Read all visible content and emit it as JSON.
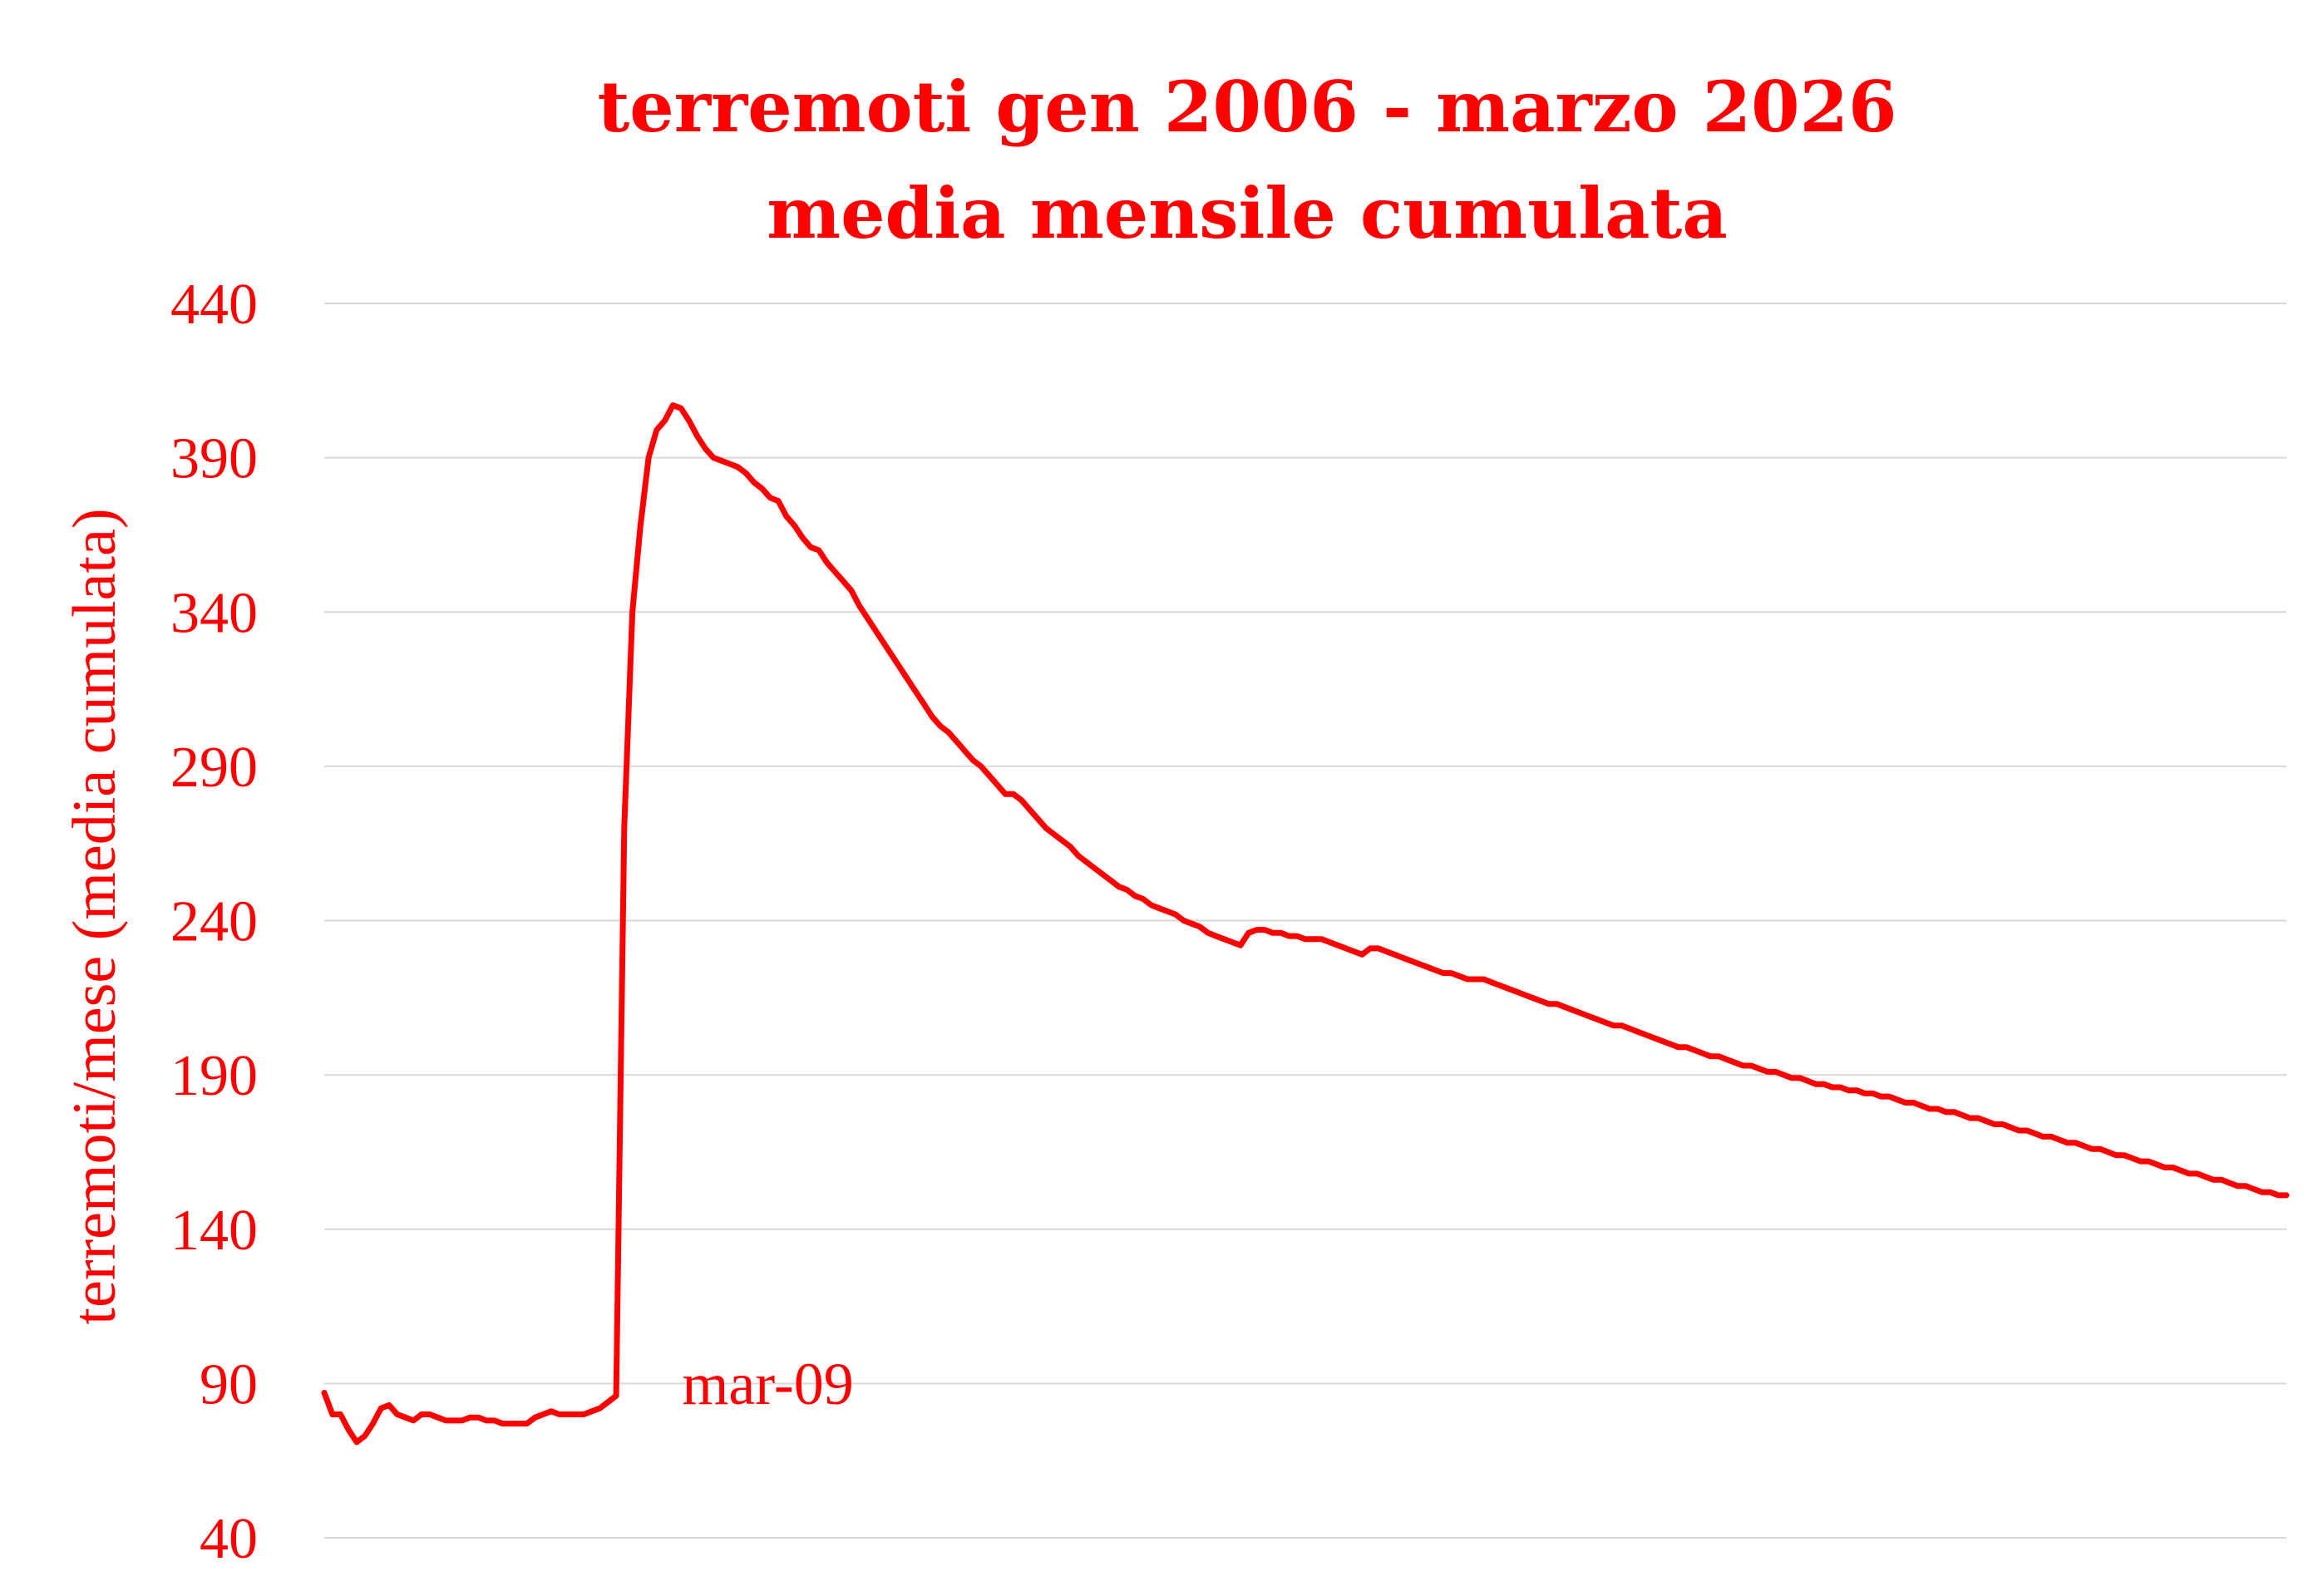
{
  "chart_data": {
    "type": "line",
    "title": "terremoti gen 2006 - marzo 2026",
    "subtitle": "media mensile cumulata",
    "xlabel": "",
    "ylabel": "terremoti/mese (media cumulata)",
    "ylim": [
      40,
      440
    ],
    "yticks": [
      40,
      90,
      140,
      190,
      240,
      290,
      340,
      390,
      440
    ],
    "ytick_labels": [
      "40",
      "90",
      "140",
      "190",
      "240",
      "290",
      "340",
      "390",
      "440"
    ],
    "grid": true,
    "legend": "none",
    "x_range": [
      0,
      242
    ],
    "annotations": [
      {
        "text": "mar-09",
        "x": 39,
        "y": 86
      }
    ],
    "series": [
      {
        "color": "#ff0000",
        "points": [
          [
            0,
            87
          ],
          [
            1,
            80
          ],
          [
            2,
            80
          ],
          [
            3,
            75
          ],
          [
            4,
            71
          ],
          [
            5,
            73
          ],
          [
            6,
            77
          ],
          [
            7,
            82
          ],
          [
            8,
            83
          ],
          [
            9,
            80
          ],
          [
            10,
            79
          ],
          [
            11,
            78
          ],
          [
            12,
            80
          ],
          [
            13,
            80
          ],
          [
            14,
            79
          ],
          [
            15,
            78
          ],
          [
            16,
            78
          ],
          [
            17,
            78
          ],
          [
            18,
            79
          ],
          [
            19,
            79
          ],
          [
            20,
            78
          ],
          [
            21,
            78
          ],
          [
            22,
            77
          ],
          [
            23,
            77
          ],
          [
            24,
            77
          ],
          [
            25,
            77
          ],
          [
            26,
            79
          ],
          [
            27,
            80
          ],
          [
            28,
            81
          ],
          [
            29,
            80
          ],
          [
            30,
            80
          ],
          [
            31,
            80
          ],
          [
            32,
            80
          ],
          [
            33,
            81
          ],
          [
            34,
            82
          ],
          [
            35,
            84
          ],
          [
            36,
            86
          ],
          [
            37,
            270
          ],
          [
            38,
            340
          ],
          [
            39,
            368
          ],
          [
            40,
            390
          ],
          [
            41,
            399
          ],
          [
            42,
            402
          ],
          [
            43,
            407
          ],
          [
            44,
            406
          ],
          [
            45,
            402
          ],
          [
            46,
            397
          ],
          [
            47,
            393
          ],
          [
            48,
            390
          ],
          [
            49,
            389
          ],
          [
            50,
            388
          ],
          [
            51,
            387
          ],
          [
            52,
            385
          ],
          [
            53,
            382
          ],
          [
            54,
            380
          ],
          [
            55,
            377
          ],
          [
            56,
            376
          ],
          [
            57,
            371
          ],
          [
            58,
            368
          ],
          [
            59,
            364
          ],
          [
            60,
            361
          ],
          [
            61,
            360
          ],
          [
            62,
            356
          ],
          [
            63,
            353
          ],
          [
            64,
            350
          ],
          [
            65,
            347
          ],
          [
            66,
            342
          ],
          [
            67,
            338
          ],
          [
            68,
            334
          ],
          [
            69,
            330
          ],
          [
            70,
            326
          ],
          [
            71,
            322
          ],
          [
            72,
            318
          ],
          [
            73,
            314
          ],
          [
            74,
            310
          ],
          [
            75,
            306
          ],
          [
            76,
            303
          ],
          [
            77,
            301
          ],
          [
            78,
            298
          ],
          [
            79,
            295
          ],
          [
            80,
            292
          ],
          [
            81,
            290
          ],
          [
            82,
            287
          ],
          [
            83,
            284
          ],
          [
            84,
            281
          ],
          [
            85,
            281
          ],
          [
            86,
            279
          ],
          [
            87,
            276
          ],
          [
            88,
            273
          ],
          [
            89,
            270
          ],
          [
            90,
            268
          ],
          [
            91,
            266
          ],
          [
            92,
            264
          ],
          [
            93,
            261
          ],
          [
            94,
            259
          ],
          [
            95,
            257
          ],
          [
            96,
            255
          ],
          [
            97,
            253
          ],
          [
            98,
            251
          ],
          [
            99,
            250
          ],
          [
            100,
            248
          ],
          [
            101,
            247
          ],
          [
            102,
            245
          ],
          [
            103,
            244
          ],
          [
            104,
            243
          ],
          [
            105,
            242
          ],
          [
            106,
            240
          ],
          [
            107,
            239
          ],
          [
            108,
            238
          ],
          [
            109,
            236
          ],
          [
            110,
            235
          ],
          [
            111,
            234
          ],
          [
            112,
            233
          ],
          [
            113,
            232
          ],
          [
            114,
            236
          ],
          [
            115,
            237
          ],
          [
            116,
            237
          ],
          [
            117,
            236
          ],
          [
            118,
            236
          ],
          [
            119,
            235
          ],
          [
            120,
            235
          ],
          [
            121,
            234
          ],
          [
            122,
            234
          ],
          [
            123,
            234
          ],
          [
            124,
            233
          ],
          [
            125,
            232
          ],
          [
            126,
            231
          ],
          [
            127,
            230
          ],
          [
            128,
            229
          ],
          [
            129,
            231
          ],
          [
            130,
            231
          ],
          [
            131,
            230
          ],
          [
            132,
            229
          ],
          [
            133,
            228
          ],
          [
            134,
            227
          ],
          [
            135,
            226
          ],
          [
            136,
            225
          ],
          [
            137,
            224
          ],
          [
            138,
            223
          ],
          [
            139,
            223
          ],
          [
            140,
            222
          ],
          [
            141,
            221
          ],
          [
            142,
            221
          ],
          [
            143,
            221
          ],
          [
            144,
            220
          ],
          [
            145,
            219
          ],
          [
            146,
            218
          ],
          [
            147,
            217
          ],
          [
            148,
            216
          ],
          [
            149,
            215
          ],
          [
            150,
            214
          ],
          [
            151,
            213
          ],
          [
            152,
            213
          ],
          [
            153,
            212
          ],
          [
            154,
            211
          ],
          [
            155,
            210
          ],
          [
            156,
            209
          ],
          [
            157,
            208
          ],
          [
            158,
            207
          ],
          [
            159,
            206
          ],
          [
            160,
            206
          ],
          [
            161,
            205
          ],
          [
            162,
            204
          ],
          [
            163,
            203
          ],
          [
            164,
            202
          ],
          [
            165,
            201
          ],
          [
            166,
            200
          ],
          [
            167,
            199
          ],
          [
            168,
            199
          ],
          [
            169,
            198
          ],
          [
            170,
            197
          ],
          [
            171,
            196
          ],
          [
            172,
            196
          ],
          [
            173,
            195
          ],
          [
            174,
            194
          ],
          [
            175,
            193
          ],
          [
            176,
            193
          ],
          [
            177,
            192
          ],
          [
            178,
            191
          ],
          [
            179,
            191
          ],
          [
            180,
            190
          ],
          [
            181,
            189
          ],
          [
            182,
            189
          ],
          [
            183,
            188
          ],
          [
            184,
            187
          ],
          [
            185,
            187
          ],
          [
            186,
            186
          ],
          [
            187,
            186
          ],
          [
            188,
            185
          ],
          [
            189,
            185
          ],
          [
            190,
            184
          ],
          [
            191,
            184
          ],
          [
            192,
            183
          ],
          [
            193,
            183
          ],
          [
            194,
            182
          ],
          [
            195,
            181
          ],
          [
            196,
            181
          ],
          [
            197,
            180
          ],
          [
            198,
            179
          ],
          [
            199,
            179
          ],
          [
            200,
            178
          ],
          [
            201,
            178
          ],
          [
            202,
            177
          ],
          [
            203,
            176
          ],
          [
            204,
            176
          ],
          [
            205,
            175
          ],
          [
            206,
            174
          ],
          [
            207,
            174
          ],
          [
            208,
            173
          ],
          [
            209,
            172
          ],
          [
            210,
            172
          ],
          [
            211,
            171
          ],
          [
            212,
            170
          ],
          [
            213,
            170
          ],
          [
            214,
            169
          ],
          [
            215,
            168
          ],
          [
            216,
            168
          ],
          [
            217,
            167
          ],
          [
            218,
            166
          ],
          [
            219,
            166
          ],
          [
            220,
            165
          ],
          [
            221,
            164
          ],
          [
            222,
            164
          ],
          [
            223,
            163
          ],
          [
            224,
            162
          ],
          [
            225,
            162
          ],
          [
            226,
            161
          ],
          [
            227,
            160
          ],
          [
            228,
            160
          ],
          [
            229,
            159
          ],
          [
            230,
            158
          ],
          [
            231,
            158
          ],
          [
            232,
            157
          ],
          [
            233,
            156
          ],
          [
            234,
            156
          ],
          [
            235,
            155
          ],
          [
            236,
            154
          ],
          [
            237,
            154
          ],
          [
            238,
            153
          ],
          [
            239,
            152
          ],
          [
            240,
            152
          ],
          [
            241,
            151
          ],
          [
            242,
            151
          ]
        ]
      }
    ]
  }
}
